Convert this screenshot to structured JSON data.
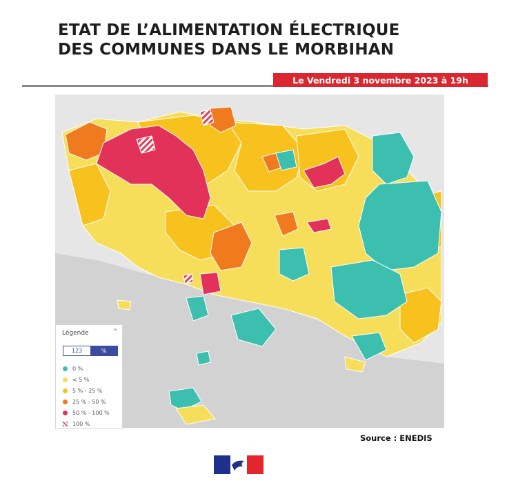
{
  "title": {
    "line1": "ETAT DE L’ALIMENTATION ÉLECTRIQUE",
    "line2": "DES COMMUNES DANS LE MORBIHAN"
  },
  "date_badge": "Le Vendredi 3 novembre  2023 à 19h",
  "legend": {
    "heading": "Légende",
    "caret": "^",
    "toggle": {
      "left": "123",
      "right": "%"
    },
    "items": [
      {
        "label": "0 %",
        "color": "#3cbfae"
      },
      {
        "label": "< 5 %",
        "color": "#f7de5a"
      },
      {
        "label": "5 % - 25 %",
        "color": "#f7c21d"
      },
      {
        "label": "25 % - 50 %",
        "color": "#f07a1e"
      },
      {
        "label": "50 % - 100 %",
        "color": "#e3325a"
      },
      {
        "label": "100 %",
        "color": "#e83d55"
      }
    ]
  },
  "source": "Source : ENEDIS",
  "colors": {
    "sea": "#d2d2d2",
    "land_bg": "#e8e8e8",
    "border": "#ffffff",
    "accent_red": "#d9262f"
  },
  "map_regions": [
    {
      "class": "0 %",
      "areas": [
        "south-east coast",
        "eastern interior",
        "gulf islands"
      ]
    },
    {
      "class": "< 5 %",
      "areas": [
        "west coast",
        "central communes",
        "peninsula"
      ]
    },
    {
      "class": "5 % - 25 %",
      "areas": [
        "central interior",
        "north centre"
      ]
    },
    {
      "class": "25 % - 50 %",
      "areas": [
        "north-west",
        "centre"
      ]
    },
    {
      "class": "50 % - 100 %",
      "areas": [
        "north-west interior",
        "north-east"
      ]
    },
    {
      "class": "100 %",
      "areas": [
        "northern border"
      ]
    }
  ],
  "icons": {
    "legend_collapse": "chevron-up-icon",
    "logo": "marianne-logo"
  }
}
